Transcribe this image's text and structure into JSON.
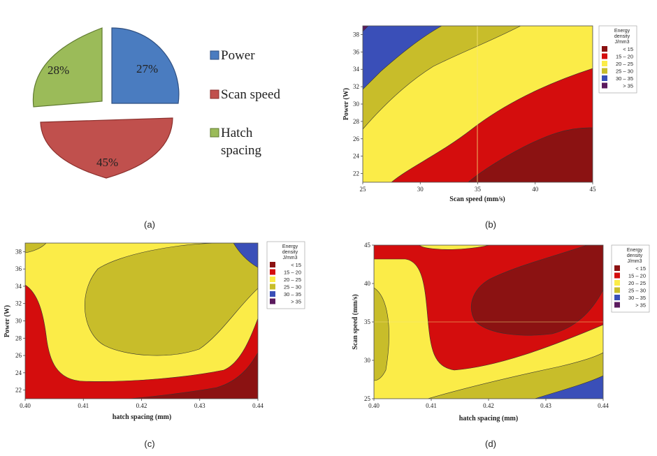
{
  "colors": {
    "lt15": "#8b1212",
    "r15_20": "#d40d0d",
    "r20_25": "#fbec48",
    "r25_30": "#c8bd2a",
    "r30_35": "#3a4fb8",
    "gt35": "#5b1a5e",
    "pie_power": "#4a7cc0",
    "pie_scan": "#c0504d",
    "pie_hatch": "#9bbb59"
  },
  "chart_data": [
    {
      "panel": "(a)",
      "type": "pie",
      "labels": [
        "Power",
        "Scan speed",
        "Hatch spacing"
      ],
      "label_lines": [
        [
          "Power"
        ],
        [
          "Scan speed"
        ],
        [
          "Hatch",
          "spacing"
        ]
      ],
      "values": [
        27,
        45,
        28
      ],
      "value_labels": [
        "27%",
        "45%",
        "28%"
      ],
      "exploded": true
    },
    {
      "panel": "(b)",
      "type": "heatmap",
      "subtype": "contour",
      "xlabel": "Scan speed (mm/s)",
      "ylabel": "Power (W)",
      "xlim": [
        25,
        45
      ],
      "ylim": [
        21,
        39
      ],
      "xticks": [
        25,
        30,
        35,
        40,
        45
      ],
      "yticks": [
        22,
        24,
        26,
        28,
        30,
        32,
        34,
        36,
        38
      ],
      "legend": {
        "title": [
          "Energy",
          "density",
          "J/mm3"
        ],
        "entries": [
          "< 15",
          "15 – 20",
          "20 – 25",
          "25 – 30",
          "30 – 35",
          "> 35"
        ]
      }
    },
    {
      "panel": "(c)",
      "type": "heatmap",
      "subtype": "contour",
      "xlabel": "hatch spacing (mm)",
      "ylabel": "Power (W)",
      "xlim": [
        0.4,
        0.44
      ],
      "ylim": [
        21,
        39
      ],
      "xticks": [
        "0.40",
        "0.41",
        "0.42",
        "0.43",
        "0.44"
      ],
      "yticks": [
        22,
        24,
        26,
        28,
        30,
        32,
        34,
        36,
        38
      ],
      "legend": {
        "title": [
          "Energy",
          "density",
          "J/mm3"
        ],
        "entries": [
          "< 15",
          "15 – 20",
          "20 – 25",
          "25 – 30",
          "30 – 35",
          "> 35"
        ]
      }
    },
    {
      "panel": "(d)",
      "type": "heatmap",
      "subtype": "contour",
      "xlabel": "hatch spacing (mm)",
      "ylabel": "Scan speed (mm/s)",
      "xlim": [
        0.4,
        0.44
      ],
      "ylim": [
        25,
        45
      ],
      "xticks": [
        "0.40",
        "0.41",
        "0.42",
        "0.43",
        "0.44"
      ],
      "yticks": [
        25,
        30,
        35,
        40,
        45
      ],
      "legend": {
        "title": [
          "Energy",
          "density",
          "J/mm3"
        ],
        "entries": [
          "< 15",
          "15 – 20",
          "20 – 25",
          "25 – 30",
          "30 – 35",
          "> 35"
        ]
      }
    }
  ]
}
